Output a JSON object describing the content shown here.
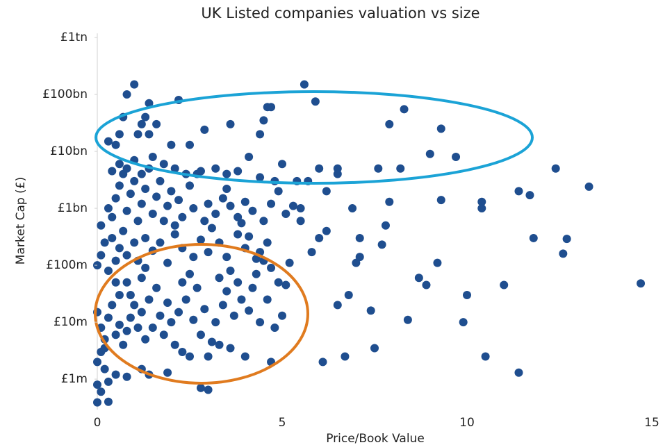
{
  "chart_data": {
    "type": "scatter",
    "title": "UK Listed companies valuation vs size",
    "x_label": "Price/Book Value",
    "y_label": "Market Cap (£)",
    "color": "#1f4e8f",
    "log_y": true,
    "grid": false,
    "xlim": [
      0,
      15
    ],
    "xticks": [
      0,
      5,
      10,
      15
    ],
    "ylim": [
      300000.0,
      1000000000000.0
    ],
    "yticks": [
      {
        "value": 1000000.0,
        "label": "£1m"
      },
      {
        "value": 10000000.0,
        "label": "£10m"
      },
      {
        "value": 100000000.0,
        "label": "£100m"
      },
      {
        "value": 1000000000.0,
        "label": "£1bn"
      },
      {
        "value": 10000000000.0,
        "label": "£10bn"
      },
      {
        "value": 100000000000.0,
        "label": "£100bn"
      },
      {
        "value": 1000000000000.0,
        "label": "£1tn"
      }
    ],
    "x": [
      0.0,
      0.3,
      0.1,
      0.0,
      0.2,
      0.3,
      0.5,
      0.8,
      1.2,
      1.4,
      1.9,
      2.8,
      3.0,
      2.3,
      2.5,
      3.0,
      3.3,
      3.6,
      4.0,
      4.7,
      0.0,
      0.1,
      0.2,
      0.1,
      0.3,
      0.4,
      0.2,
      0.5,
      0.6,
      0.0,
      0.7,
      0.8,
      0.9,
      1.0,
      0.6,
      0.5,
      0.8,
      1.1,
      1.2,
      0.9,
      1.3,
      1.5,
      1.7,
      1.4,
      1.6,
      1.8,
      2.0,
      1.9,
      1.2,
      1.3,
      2.1,
      2.2,
      2.4,
      2.6,
      2.3,
      2.8,
      2.9,
      2.5,
      2.7,
      3.1,
      3.2,
      3.4,
      3.5,
      3.3,
      3.7,
      3.9,
      3.6,
      3.8,
      4.1,
      4.2,
      4.4,
      4.6,
      4.3,
      4.5,
      4.8,
      5.0,
      4.9,
      4.7,
      5.1,
      5.2,
      0.0,
      0.1,
      0.2,
      0.3,
      0.4,
      0.5,
      0.6,
      0.7,
      0.8,
      1.0,
      1.1,
      1.3,
      1.5,
      1.7,
      1.9,
      2.1,
      2.3,
      2.6,
      2.8,
      3.0,
      3.3,
      3.5,
      3.8,
      4.0,
      4.3,
      4.6,
      3.1,
      3.9,
      4.4,
      4.1,
      0.1,
      0.3,
      0.4,
      0.5,
      0.6,
      0.7,
      0.8,
      0.9,
      1.0,
      1.1,
      1.2,
      1.3,
      1.4,
      1.5,
      1.6,
      1.7,
      1.8,
      1.9,
      2.0,
      2.1,
      2.2,
      2.3,
      2.5,
      2.6,
      2.7,
      2.9,
      3.0,
      3.2,
      3.4,
      3.6,
      3.8,
      4.0,
      4.2,
      4.5,
      4.7,
      4.9,
      5.1,
      5.3,
      5.5,
      3.5,
      0.4,
      0.6,
      0.8,
      1.0,
      1.2,
      1.5,
      1.8,
      2.1,
      2.4,
      2.8,
      3.2,
      3.5,
      3.8,
      4.1,
      4.4,
      4.8,
      5.0,
      5.4,
      5.7,
      6.0,
      0.8,
      1.0,
      0.7,
      1.4,
      1.3,
      2.2,
      1.2,
      0.3,
      0.5,
      0.6,
      1.1,
      1.4,
      1.6,
      2.0,
      2.5,
      2.9,
      3.6,
      4.5,
      4.6,
      4.4,
      14.7,
      13.3,
      12.4,
      12.7,
      12.6,
      11.8,
      11.7,
      11.4,
      11.4,
      11.0,
      10.5,
      10.4,
      10.4,
      10.0,
      9.9,
      9.7,
      9.3,
      9.3,
      9.2,
      9.0,
      8.9,
      8.7,
      8.4,
      8.3,
      8.2,
      7.9,
      7.9,
      7.8,
      7.7,
      7.6,
      7.5,
      7.4,
      7.1,
      7.1,
      7.0,
      6.9,
      6.8,
      6.7,
      6.5,
      6.5,
      6.2,
      6.2,
      6.1,
      5.8,
      5.9,
      5.6,
      5.5,
      4.7,
      6.5,
      6.0
    ],
    "values": [
      390000.0,
      400000.0,
      600000.0,
      800000.0,
      1500000.0,
      900000.0,
      1200000.0,
      1100000.0,
      1500000.0,
      1200000.0,
      1300000.0,
      700000.0,
      650000.0,
      3000000.0,
      2500000.0,
      2500000.0,
      4000000.0,
      3500000.0,
      2500000.0,
      2000000.0,
      2000000.0,
      3000000.0,
      5000000.0,
      8000000.0,
      12000000.0,
      20000000.0,
      3500000.0,
      6000000.0,
      9000000.0,
      15000000.0,
      4000000.0,
      7000000.0,
      12000000.0,
      20000000.0,
      30000000.0,
      50000000.0,
      50000000.0,
      8000000.0,
      15000000.0,
      30000000.0,
      5000000.0,
      8000000.0,
      13000000.0,
      25000000.0,
      40000000.0,
      6000000.0,
      10000000.0,
      22000000.0,
      60000000.0,
      90000000.0,
      4000000.0,
      15000000.0,
      25000000.0,
      11000000.0,
      50000000.0,
      6000000.0,
      17000000.0,
      70000000.0,
      40000000.0,
      4500000.0,
      10000000.0,
      20000000.0,
      35000000.0,
      60000000.0,
      13000000.0,
      25000000.0,
      80000000.0,
      50000000.0,
      16000000.0,
      40000000.0,
      10000000.0,
      25000000.0,
      70000000.0,
      120000000.0,
      8000000.0,
      13000000.0,
      50000000.0,
      90000000.0,
      45000000.0,
      110000000.0,
      100000000.0,
      150000000.0,
      250000000.0,
      80000000.0,
      300000000.0,
      120000000.0,
      200000000.0,
      400000000.0,
      150000000.0,
      250000000.0,
      120000000.0,
      300000000.0,
      180000000.0,
      250000000.0,
      110000000.0,
      350000000.0,
      200000000.0,
      140000000.0,
      280000000.0,
      170000000.0,
      250000000.0,
      140000000.0,
      350000000.0,
      200000000.0,
      130000000.0,
      250000000.0,
      450000000.0,
      550000000.0,
      170000000.0,
      320000000.0,
      500000000.0,
      1000000000.0,
      700000000.0,
      1500000000.0,
      2500000000.0,
      4000000000.0,
      900000000.0,
      1800000000.0,
      3000000000.0,
      600000000.0,
      1200000000.0,
      2200000000.0,
      5000000000.0,
      800000000.0,
      1600000000.0,
      3000000000.0,
      600000000.0,
      1100000000.0,
      2000000000.0,
      500000000.0,
      1400000000.0,
      700000000.0,
      2500000000.0,
      1000000000.0,
      4000000000.0,
      600000000.0,
      1200000000.0,
      800000000.0,
      1500000000.0,
      1100000000.0,
      700000000.0,
      1300000000.0,
      900000000.0,
      600000000.0,
      1200000000.0,
      2000000000.0,
      800000000.0,
      1100000000.0,
      600000000.0,
      2200000000.0,
      4500000000.0,
      6000000000.0,
      5000000000.0,
      7000000000.0,
      4000000000.0,
      8000000000.0,
      6000000000.0,
      5000000000.0,
      4000000000.0,
      4500000000.0,
      5000000000.0,
      4000000000.0,
      4500000000.0,
      8000000000.0,
      3500000000.0,
      3000000000.0,
      6000000000.0,
      3000000000.0,
      3000000000.0,
      5000000000.0,
      100000000000.0,
      150000000000.0,
      40000000000.0,
      70000000000.0,
      40000000000.0,
      80000000000.0,
      30000000000.0,
      15000000000.0,
      13000000000.0,
      20000000000.0,
      20000000000.0,
      20000000000.0,
      30000000000.0,
      13000000000.0,
      13000000000.0,
      24000000000.0,
      30000000000.0,
      35000000000.0,
      60000000000.0,
      20000000000.0,
      48000000.0,
      2400000000.0,
      5000000000.0,
      290000000.0,
      160000000.0,
      300000000.0,
      1700000000.0,
      2000000000.0,
      1300000.0,
      45000000.0,
      2500000.0,
      1300000000.0,
      1000000000.0,
      30000000.0,
      10000000.0,
      8000000000.0,
      25000000000.0,
      1400000000.0,
      110000000.0,
      9000000000.0,
      45000000.0,
      60000000.0,
      11000000.0,
      55000000000.0,
      5000000000.0,
      30000000000.0,
      1300000000.0,
      500000000.0,
      230000000.0,
      5000000000.0,
      3500000.0,
      16000000.0,
      140000000.0,
      300000000.0,
      110000000.0,
      1000000000.0,
      30000000.0,
      2500000.0,
      20000000.0,
      5000000000.0,
      2000000000.0,
      400000000.0,
      2000000.0,
      170000000.0,
      75000000000.0,
      150000000000.0,
      1000000000.0,
      60000000000.0,
      4000000000.0,
      300000000.0
    ]
  }
}
